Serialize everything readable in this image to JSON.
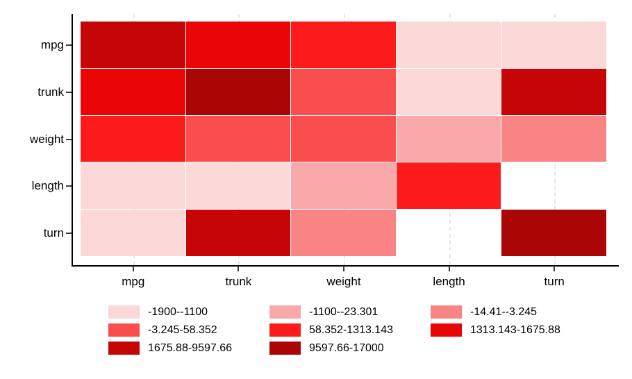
{
  "chart_data": {
    "type": "heatmap",
    "title": "",
    "xlabel": "",
    "ylabel": "",
    "rows": [
      "mpg",
      "trunk",
      "weight",
      "length",
      "turn"
    ],
    "columns": [
      "mpg",
      "trunk",
      "weight",
      "length",
      "turn"
    ],
    "cells_bin_index": [
      [
        7,
        6,
        5,
        1,
        1
      ],
      [
        6,
        8,
        4,
        1,
        7
      ],
      [
        5,
        4,
        4,
        2,
        3
      ],
      [
        1,
        1,
        2,
        5,
        0
      ],
      [
        1,
        7,
        3,
        0,
        8
      ]
    ],
    "missing_cells_note": "0 = blank/white cell (length x turn and turn x length)",
    "bins": [
      {
        "label": "-1900--1100",
        "color": "#FDD8D8"
      },
      {
        "label": "-1100--23.301",
        "color": "#F9A9A9"
      },
      {
        "label": "-14.41--3.245",
        "color": "#F88484"
      },
      {
        "label": "-3.245-58.352",
        "color": "#FA4E4E"
      },
      {
        "label": "58.352-1313.143",
        "color": "#FB1B1B"
      },
      {
        "label": "1313.143-1675.88",
        "color": "#EA0606"
      },
      {
        "label": "1675.88-9597.66",
        "color": "#C60606"
      },
      {
        "label": "9597.66-17000",
        "color": "#AA0606"
      }
    ],
    "legend_position": "bottom",
    "legend_columns": 3,
    "grid": "vertical dashed gridlines at column centers",
    "axis_color": "#000000",
    "gridline_color": "#e7e7e7",
    "background_color": "#ffffff"
  }
}
